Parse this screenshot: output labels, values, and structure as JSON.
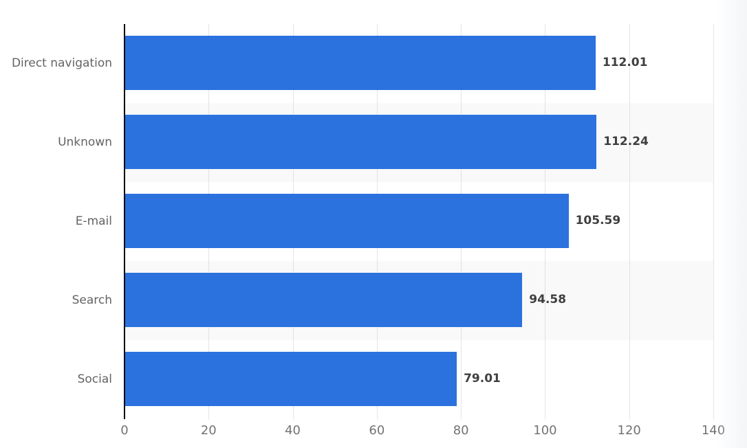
{
  "chart_data": {
    "type": "bar",
    "orientation": "horizontal",
    "title": "",
    "xlabel": "",
    "ylabel": "",
    "categories": [
      "Direct navigation",
      "Unknown",
      "E-mail",
      "Search",
      "Social"
    ],
    "values": [
      112.01,
      112.24,
      105.59,
      94.58,
      79.01
    ],
    "value_labels": [
      "112.01",
      "112.24",
      "105.59",
      "94.58",
      "79.01"
    ],
    "xlim": [
      0,
      140
    ],
    "x_ticks": [
      0,
      20,
      40,
      60,
      80,
      100,
      120,
      140
    ],
    "grid": "vertical-dotted",
    "legend": "none",
    "colors": {
      "bar": "#2b72de",
      "stripe": "#f9f9f9",
      "axis_line": "#000000",
      "gridline": "#cbcbcb",
      "value_label": "#3f3f3f",
      "category_label": "#636363",
      "tick_label": "#737373",
      "background": "#ffffff"
    }
  }
}
